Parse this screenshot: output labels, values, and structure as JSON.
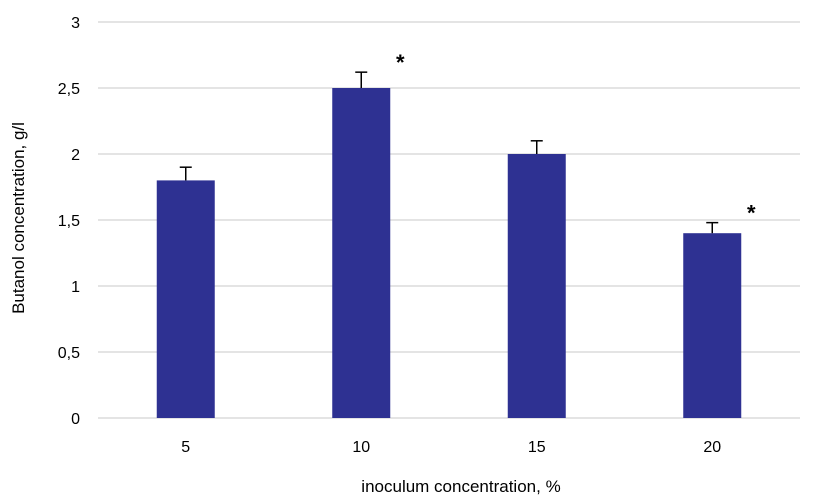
{
  "chart_data": {
    "type": "bar",
    "categories": [
      "5",
      "10",
      "15",
      "20"
    ],
    "values": [
      1.8,
      2.5,
      2.0,
      1.4
    ],
    "error": [
      0.1,
      0.12,
      0.1,
      0.08
    ],
    "annotations": [
      "",
      "*",
      "",
      "*"
    ],
    "xlabel": "inoculum concentration, %",
    "ylabel": "Butanol concentration, g/l",
    "ylim": [
      0,
      3
    ],
    "yticks": [
      0,
      0.5,
      1,
      1.5,
      2,
      2.5,
      3
    ],
    "ytick_labels": [
      "0",
      "0,5",
      "1",
      "1,5",
      "2",
      "2,5",
      "3"
    ],
    "grid": true,
    "legend": false,
    "colors": {
      "bar": "#2e3192",
      "grid": "#c8c8c8",
      "error_bar": "#000000"
    }
  }
}
